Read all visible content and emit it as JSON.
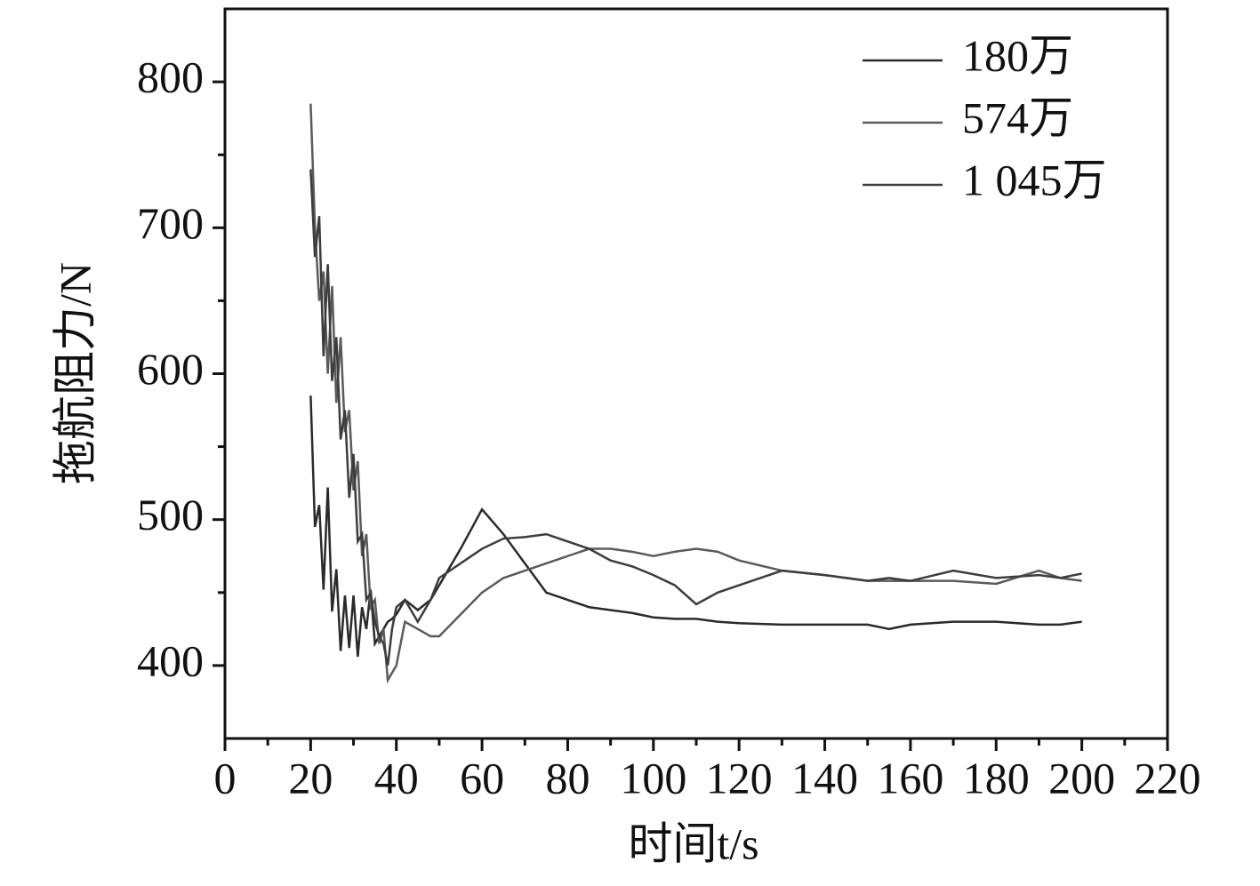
{
  "chart_data": {
    "type": "line",
    "x_label": "时间t/s",
    "y_label": "拖航阻力/N",
    "x": [
      20,
      21,
      22,
      23,
      24,
      25,
      26,
      27,
      28,
      29,
      30,
      31,
      32,
      33,
      34,
      35,
      36,
      37,
      38,
      39,
      40,
      42,
      45,
      48,
      50,
      55,
      60,
      65,
      70,
      75,
      80,
      85,
      90,
      95,
      100,
      105,
      110,
      115,
      120,
      130,
      140,
      150,
      155,
      160,
      170,
      180,
      190,
      195,
      200
    ],
    "series": [
      {
        "name": "180万",
        "color": "#2a2a2a",
        "values": [
          585,
          495,
          510,
          452,
          522,
          437,
          466,
          410,
          448,
          412,
          448,
          406,
          440,
          425,
          452,
          415,
          420,
          425,
          430,
          432,
          435,
          445,
          438,
          445,
          455,
          480,
          507,
          490,
          470,
          450,
          445,
          440,
          438,
          436,
          433,
          432,
          432,
          430,
          429,
          428,
          428,
          428,
          425,
          428,
          430,
          430,
          428,
          428,
          430
        ]
      },
      {
        "name": "574万",
        "color": "#5a5a5a",
        "values": [
          785,
          700,
          650,
          670,
          600,
          660,
          580,
          625,
          560,
          575,
          520,
          540,
          475,
          490,
          440,
          445,
          415,
          425,
          390,
          395,
          400,
          430,
          425,
          420,
          420,
          435,
          450,
          460,
          465,
          470,
          475,
          480,
          480,
          478,
          475,
          478,
          480,
          478,
          472,
          465,
          462,
          458,
          458,
          458,
          458,
          456,
          465,
          460,
          458
        ]
      },
      {
        "name": "1 045万",
        "color": "#3c3c3c",
        "values": [
          740,
          680,
          708,
          612,
          675,
          595,
          625,
          555,
          575,
          515,
          545,
          485,
          490,
          445,
          450,
          430,
          420,
          415,
          400,
          425,
          440,
          445,
          430,
          445,
          460,
          470,
          480,
          487,
          488,
          490,
          485,
          480,
          472,
          468,
          462,
          455,
          442,
          450,
          455,
          465,
          462,
          458,
          460,
          458,
          465,
          460,
          462,
          460,
          463
        ]
      }
    ],
    "xlim": [
      0,
      220
    ],
    "xticks": [
      0,
      20,
      40,
      60,
      80,
      100,
      120,
      140,
      160,
      180,
      200,
      220
    ],
    "ylim": [
      350,
      850
    ],
    "yticks": [
      400,
      500,
      600,
      700,
      800
    ]
  }
}
